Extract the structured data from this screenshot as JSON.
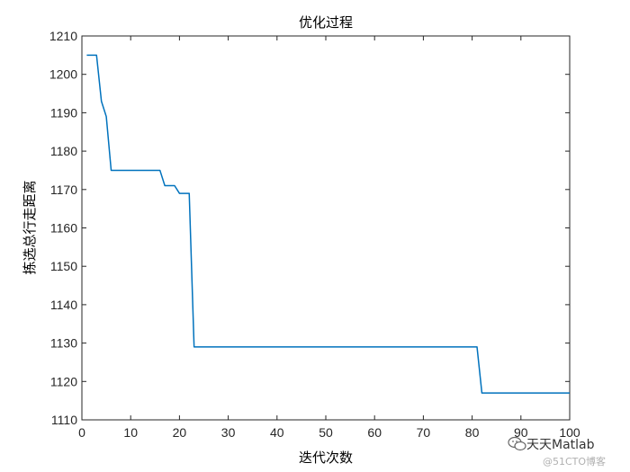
{
  "chart_data": {
    "type": "line",
    "title": "优化过程",
    "xlabel": "迭代次数",
    "ylabel": "拣选总行走距离",
    "xlim": [
      0,
      100
    ],
    "ylim": [
      1110,
      1210
    ],
    "xticks": [
      0,
      10,
      20,
      30,
      40,
      50,
      60,
      70,
      80,
      90,
      100
    ],
    "yticks": [
      1110,
      1120,
      1130,
      1140,
      1150,
      1160,
      1170,
      1180,
      1190,
      1200,
      1210
    ],
    "grid": false,
    "legend": "none",
    "series": [
      {
        "color": "#0072BD",
        "x": [
          1,
          2,
          3,
          4,
          5,
          6,
          7,
          8,
          9,
          10,
          11,
          12,
          13,
          14,
          15,
          16,
          17,
          18,
          19,
          20,
          21,
          22,
          23,
          24,
          25,
          30,
          40,
          50,
          60,
          70,
          80,
          81,
          82,
          83,
          90,
          100
        ],
        "y": [
          1205,
          1205,
          1205,
          1193,
          1189,
          1175,
          1175,
          1175,
          1175,
          1175,
          1175,
          1175,
          1175,
          1175,
          1175,
          1175,
          1171,
          1171,
          1171,
          1169,
          1169,
          1169,
          1129,
          1129,
          1129,
          1129,
          1129,
          1129,
          1129,
          1129,
          1129,
          1129,
          1117,
          1117,
          1117,
          1117
        ]
      }
    ]
  },
  "watermark": {
    "text": "天天Matlab",
    "subtext": "@51CTO博客",
    "icon": "wechat-icon"
  }
}
